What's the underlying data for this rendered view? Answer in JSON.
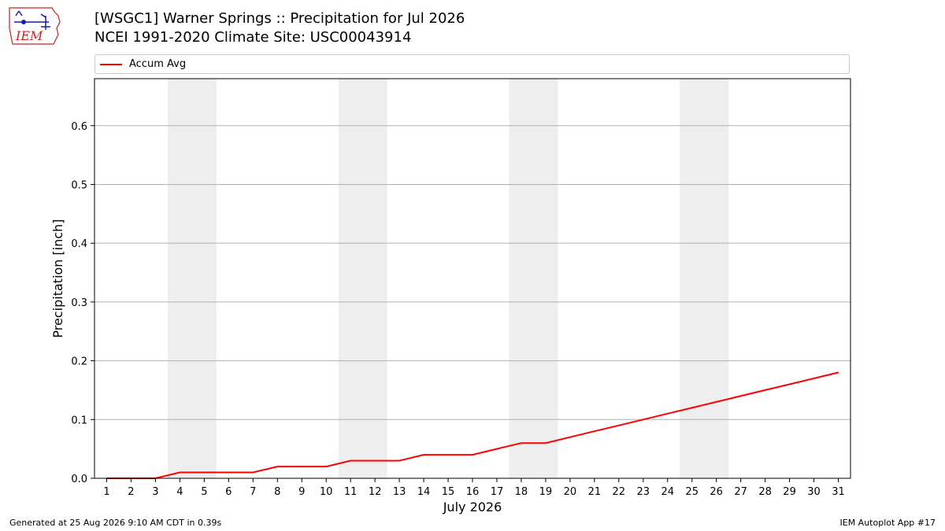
{
  "logo": {
    "text": "IEM"
  },
  "title_line1": "[WSGC1] Warner Springs :: Precipitation for Jul 2026",
  "title_line2": "NCEI 1991-2020 Climate Site: USC00043914",
  "footer": {
    "left": "Generated at 25 Aug 2026 9:10 AM CDT in 0.39s",
    "right": "IEM Autoplot App #17"
  },
  "colors": {
    "series": "#ff0000",
    "weekend_band": "#eeeeee",
    "grid": "#b0b0b0"
  },
  "chart_data": {
    "type": "line",
    "xlabel": "July 2026",
    "ylabel": "Precipitation [inch]",
    "ylim": [
      0,
      0.68
    ],
    "yticks": [
      0.0,
      0.1,
      0.2,
      0.3,
      0.4,
      0.5,
      0.6
    ],
    "ytick_labels": [
      "0.0",
      "0.1",
      "0.2",
      "0.3",
      "0.4",
      "0.5",
      "0.6"
    ],
    "xlim": [
      0.5,
      31.5
    ],
    "x": [
      1,
      2,
      3,
      4,
      5,
      6,
      7,
      8,
      9,
      10,
      11,
      12,
      13,
      14,
      15,
      16,
      17,
      18,
      19,
      20,
      21,
      22,
      23,
      24,
      25,
      26,
      27,
      28,
      29,
      30,
      31
    ],
    "xtick_labels": [
      "1",
      "2",
      "3",
      "4",
      "5",
      "6",
      "7",
      "8",
      "9",
      "10",
      "11",
      "12",
      "13",
      "14",
      "15",
      "16",
      "17",
      "18",
      "19",
      "20",
      "21",
      "22",
      "23",
      "24",
      "25",
      "26",
      "27",
      "28",
      "29",
      "30",
      "31"
    ],
    "grid": "horizontal",
    "legend_position": "top",
    "weekend_bands": [
      [
        3.5,
        5.5
      ],
      [
        10.5,
        12.5
      ],
      [
        17.5,
        19.5
      ],
      [
        24.5,
        26.5
      ]
    ],
    "series": [
      {
        "name": "Accum Avg",
        "color": "#ff0000",
        "values": [
          0.0,
          0.0,
          0.0,
          0.01,
          0.01,
          0.01,
          0.01,
          0.02,
          0.02,
          0.02,
          0.03,
          0.03,
          0.03,
          0.04,
          0.04,
          0.04,
          0.05,
          0.06,
          0.06,
          0.07,
          0.08,
          0.09,
          0.1,
          0.11,
          0.12,
          0.13,
          0.14,
          0.15,
          0.16,
          0.17,
          0.18
        ]
      }
    ]
  }
}
